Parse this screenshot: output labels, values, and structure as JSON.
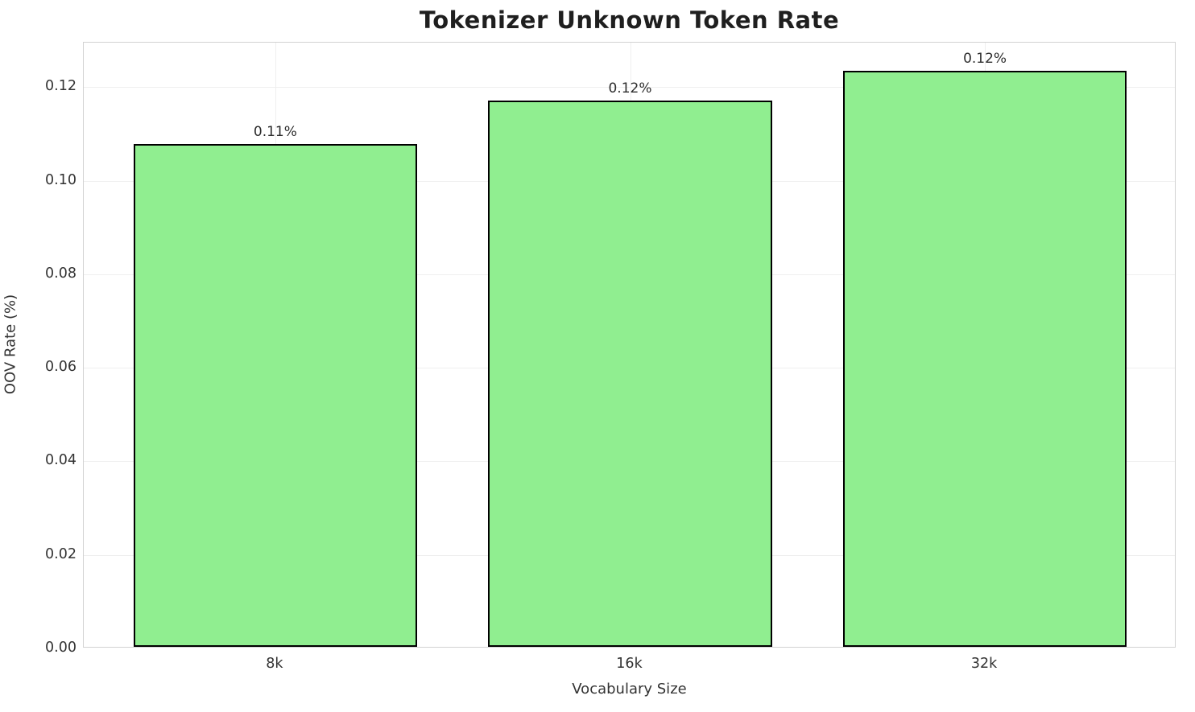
{
  "chart_data": {
    "type": "bar",
    "title": "Tokenizer Unknown Token Rate",
    "xlabel": "Vocabulary Size",
    "ylabel": "OOV Rate (%)",
    "categories": [
      "8k",
      "16k",
      "32k"
    ],
    "values": [
      0.1075,
      0.1167,
      0.1232
    ],
    "bar_value_labels": [
      "0.11%",
      "0.12%",
      "0.12%"
    ],
    "ytick_labels": [
      "0.00",
      "0.02",
      "0.04",
      "0.06",
      "0.08",
      "0.10",
      "0.12"
    ],
    "yticks": [
      0.0,
      0.02,
      0.04,
      0.06,
      0.08,
      0.1,
      0.12
    ],
    "ylim": [
      0,
      0.1295
    ],
    "grid": true,
    "legend": "none",
    "bar_color": "#90EE90",
    "bar_edge_color": "#000000",
    "bar_width_fraction": 0.8
  }
}
